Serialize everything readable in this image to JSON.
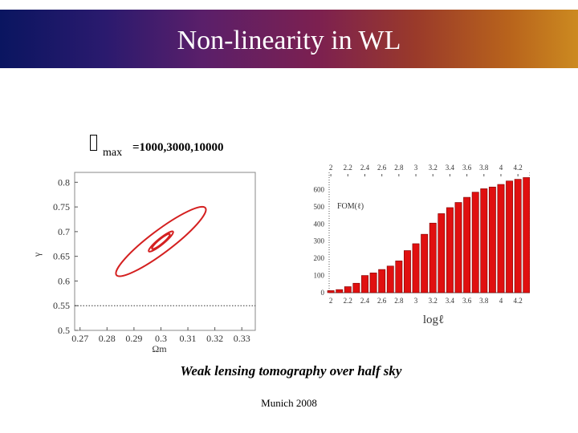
{
  "slide": {
    "title": "Non-linearity in WL",
    "caption": "Weak lensing tomography over half sky",
    "footer": "Munich 2008",
    "lmax_sub": "max",
    "lmax_values": "=1000,3000,10000",
    "colors": {
      "accent_red": "#d42020",
      "bar_red": "#e01010"
    }
  },
  "chart_data": [
    {
      "type": "scatter",
      "title": "",
      "xlabel": "Ωm",
      "ylabel": "γ",
      "xlim": [
        0.268,
        0.335
      ],
      "ylim": [
        0.5,
        0.82
      ],
      "xticks": [
        0.27,
        0.28,
        0.29,
        0.3,
        0.31,
        0.32,
        0.33
      ],
      "xtick_labels": [
        "0.27",
        "0.28",
        "0.29",
        "0.3",
        "0.31",
        "0.32",
        "0.33"
      ],
      "yticks": [
        0.5,
        0.55,
        0.6,
        0.65,
        0.7,
        0.75,
        0.8
      ],
      "ytick_labels": [
        "0.5",
        "0.55",
        "0.6",
        "0.65",
        "0.7",
        "0.75",
        "0.8"
      ],
      "reference_line": 0.55,
      "ellipses": [
        {
          "label": "1000",
          "center": [
            0.3,
            0.68
          ],
          "semi_x": 0.0165,
          "semi_y": 0.068
        },
        {
          "label": "3000",
          "center": [
            0.3,
            0.68
          ],
          "semi_x": 0.0045,
          "semi_y": 0.02
        },
        {
          "label": "10000",
          "center": [
            0.3,
            0.68
          ],
          "semi_x": 0.0033,
          "semi_y": 0.015
        }
      ]
    },
    {
      "type": "bar",
      "title": "",
      "legend": "FOM(ℓ)",
      "xlabel": "logℓ",
      "ylabel": "",
      "ylim": [
        0,
        700
      ],
      "yticks": [
        0,
        100,
        200,
        300,
        400,
        500,
        600
      ],
      "ytick_labels": [
        "0",
        "100",
        "200",
        "300",
        "400",
        "500",
        "600"
      ],
      "xticks": [
        2,
        2.2,
        2.4,
        2.6,
        2.8,
        3,
        3.2,
        3.4,
        3.6,
        3.8,
        4,
        4.2
      ],
      "xtick_labels": [
        "2",
        "2.2",
        "2.4",
        "2.6",
        "2.8",
        "3",
        "3.2",
        "3.4",
        "3.6",
        "3.8",
        "4",
        "4.2"
      ],
      "xlim": [
        1.98,
        4.34
      ],
      "x": [
        2.0,
        2.1,
        2.2,
        2.3,
        2.4,
        2.5,
        2.6,
        2.7,
        2.8,
        2.9,
        3.0,
        3.1,
        3.2,
        3.3,
        3.4,
        3.5,
        3.6,
        3.7,
        3.8,
        3.9,
        4.0,
        4.1,
        4.2,
        4.3
      ],
      "values": [
        12,
        18,
        35,
        55,
        100,
        115,
        135,
        155,
        185,
        245,
        285,
        340,
        405,
        460,
        495,
        525,
        555,
        585,
        605,
        615,
        630,
        650,
        660,
        670
      ]
    }
  ]
}
